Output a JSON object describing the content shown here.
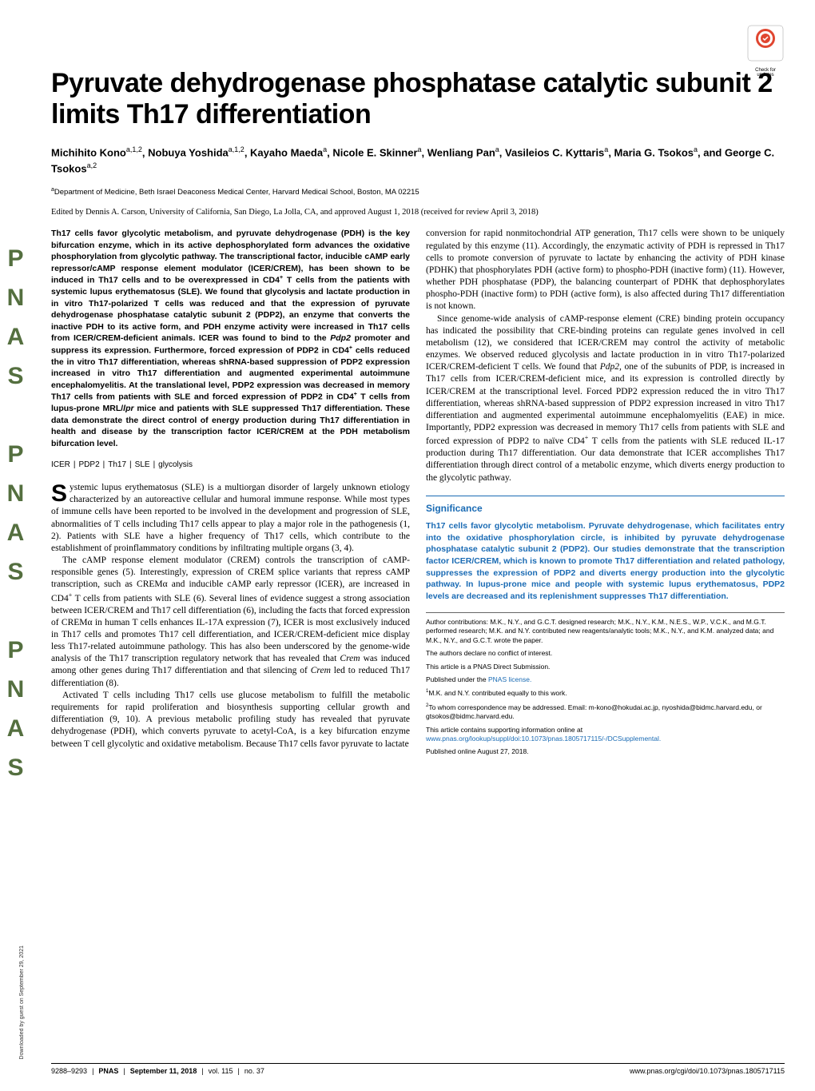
{
  "sidebar": {
    "pnas": "PNAS PNAS PNAS"
  },
  "download_note": "Downloaded by guest on September 29, 2021",
  "check_updates": {
    "label1": "Check for",
    "label2": "updates",
    "badge_color": "#e04630",
    "circle_color": "#ffffff"
  },
  "title": "Pyruvate dehydrogenase phosphatase catalytic subunit 2 limits Th17 differentiation",
  "authors_html": "Michihito Kono<sup>a,1,2</sup>, Nobuya Yoshida<sup>a,1,2</sup>, Kayaho Maeda<sup>a</sup>, Nicole E. Skinner<sup>a</sup>, Wenliang Pan<sup>a</sup>, Vasileios C. Kyttaris<sup>a</sup>, Maria G. Tsokos<sup>a</sup>, and George C. Tsokos<sup>a,2</sup>",
  "affiliation_html": "<sup>a</sup>Department of Medicine, Beth Israel Deaconess Medical Center, Harvard Medical School, Boston, MA 02215",
  "edited": "Edited by Dennis A. Carson, University of California, San Diego, La Jolla, CA, and approved August 1, 2018 (received for review April 3, 2018)",
  "abstract": "Th17 cells favor glycolytic metabolism, and pyruvate dehydrogenase (PDH) is the key bifurcation enzyme, which in its active dephosphorylated form advances the oxidative phosphorylation from glycolytic pathway. The transcriptional factor, inducible cAMP early repressor/cAMP response element modulator (ICER/CREM), has been shown to be induced in Th17 cells and to be overexpressed in CD4<sup>+</sup> T cells from the patients with systemic lupus erythematosus (SLE). We found that glycolysis and lactate production in in vitro Th17-polarized T cells was reduced and that the expression of pyruvate dehydrogenase phosphatase catalytic subunit 2 (PDP2), an enzyme that converts the inactive PDH to its active form, and PDH enzyme activity were increased in Th17 cells from ICER/CREM-deficient animals. ICER was found to bind to the <span class=\"it\">Pdp2</span> promoter and suppress its expression. Furthermore, forced expression of PDP2 in CD4<sup>+</sup> cells reduced the in vitro Th17 differentiation, whereas shRNA-based suppression of PDP2 expression increased in vitro Th17 differentiation and augmented experimental autoimmune encephalomyelitis. At the translational level, PDP2 expression was decreased in memory Th17 cells from patients with SLE and forced expression of PDP2 in CD4<sup>+</sup> T cells from lupus-prone MRL/<span class=\"it\">lpr</span> mice and patients with SLE suppressed Th17 differentiation. These data demonstrate the direct control of energy production during Th17 differentiation in health and disease by the transcription factor ICER/CREM at the PDH metabolism bifurcation level.",
  "keywords": [
    "ICER",
    "PDP2",
    "Th17",
    "SLE",
    "glycolysis"
  ],
  "col1": {
    "p1_dropcap": "S",
    "p1": "ystemic lupus erythematosus (SLE) is a multiorgan disorder of largely unknown etiology characterized by an autoreactive cellular and humoral immune response. While most types of immune cells have been reported to be involved in the development and progression of SLE, abnormalities of T cells including Th17 cells appear to play a major role in the pathogenesis (1, 2). Patients with SLE have a higher frequency of Th17 cells, which contribute to the establishment of proinflammatory conditions by infiltrating multiple organs (3, 4).",
    "p2": "The cAMP response element modulator (CREM) controls the transcription of cAMP-responsible genes (5). Interestingly, expression of CREM splice variants that repress cAMP transcription, such as CREMα and inducible cAMP early repressor (ICER), are increased in CD4<sup>+</sup> T cells from patients with SLE (6). Several lines of evidence suggest a strong association between ICER/CREM and Th17 cell differentiation (6), including the facts that forced expression of CREMα in human T cells enhances IL-17A expression (7), ICER is most exclusively induced in Th17 cells and promotes Th17 cell differentiation, and ICER/CREM-deficient mice display less Th17-related autoimmune pathology. This has also been underscored by the genome-wide analysis of the Th17 transcription regulatory network that has revealed that <span class=\"it\">Crem</span> was induced among other genes during Th17 differentiation and that silencing of <span class=\"it\">Crem</span> led to reduced Th17 differentiation (8).",
    "p3": "Activated T cells including Th17 cells use glucose metabolism to fulfill the metabolic requirements for rapid proliferation and biosynthesis supporting cellular growth and differentiation (9, 10). A previous metabolic profiling study has revealed that pyruvate dehydrogenase (PDH), which converts pyruvate to acetyl-CoA, is a key bifurcation enzyme between T cell glycolytic and oxidative metabolism. Because Th17 cells favor pyruvate to lactate"
  },
  "col2": {
    "p1": "conversion for rapid nonmitochondrial ATP generation, Th17 cells were shown to be uniquely regulated by this enzyme (11). Accordingly, the enzymatic activity of PDH is repressed in Th17 cells to promote conversion of pyruvate to lactate by enhancing the activity of PDH kinase (PDHK) that phosphorylates PDH (active form) to phospho-PDH (inactive form) (11). However, whether PDH phosphatase (PDP), the balancing counterpart of PDHK that dephosphorylates phospho-PDH (inactive form) to PDH (active form), is also affected during Th17 differentiation is not known.",
    "p2": "Since genome-wide analysis of cAMP-response element (CRE) binding protein occupancy has indicated the possibility that CRE-binding proteins can regulate genes involved in cell metabolism (12), we considered that ICER/CREM may control the activity of metabolic enzymes. We observed reduced glycolysis and lactate production in in vitro Th17-polarized ICER/CREM-deficient T cells. We found that <span class=\"it\">Pdp2</span>, one of the subunits of PDP, is increased in Th17 cells from ICER/CREM-deficient mice, and its expression is controlled directly by ICER/CREM at the transcriptional level. Forced PDP2 expression reduced the in vitro Th17 differentiation, whereas shRNA-based suppression of PDP2 expression increased in vitro Th17 differentiation and augmented experimental autoimmune encephalomyelitis (EAE) in mice. Importantly, PDP2 expression was decreased in memory Th17 cells from patients with SLE and forced expression of PDP2 to naïve CD4<sup>+</sup> T cells from the patients with SLE reduced IL-17 production during Th17 differentiation. Our data demonstrate that ICER accomplishes Th17 differentiation through direct control of a metabolic enzyme, which diverts energy production to the glycolytic pathway."
  },
  "significance": {
    "title": "Significance",
    "text": "Th17 cells favor glycolytic metabolism. Pyruvate dehydrogenase, which facilitates entry into the oxidative phosphorylation circle, is inhibited by pyruvate dehydrogenase phosphatase catalytic subunit 2 (PDP2). Our studies demonstrate that the transcription factor ICER/CREM, which is known to promote Th17 differentiation and related pathology, suppresses the expression of PDP2 and diverts energy production into the glycolytic pathway. In lupus-prone mice and people with systemic lupus erythematosus, PDP2 levels are decreased and its replenishment suppresses Th17 differentiation.",
    "color": "#1a6bb4"
  },
  "fine_print": {
    "contributions": "Author contributions: M.K., N.Y., and G.C.T. designed research; M.K., N.Y., K.M., N.E.S., W.P., V.C.K., and M.G.T. performed research; M.K. and N.Y. contributed new reagents/analytic tools; M.K., N.Y., and K.M. analyzed data; and M.K., N.Y., and G.C.T. wrote the paper.",
    "conflict": "The authors declare no conflict of interest.",
    "direct": "This article is a PNAS Direct Submission.",
    "license_pre": "Published under the ",
    "license_link": "PNAS license.",
    "note1": "<sup>1</sup>M.K. and N.Y. contributed equally to this work.",
    "note2": "<sup>2</sup>To whom correspondence may be addressed. Email: m-kono@hokudai.ac.jp, nyoshida@bidmc.harvard.edu, or gtsokos@bidmc.harvard.edu.",
    "supp_pre": "This article contains supporting information online at ",
    "supp_link": "www.pnas.org/lookup/suppl/doi:10.1073/pnas.1805717115/-/DCSupplemental.",
    "published": "Published online August 27, 2018."
  },
  "footer": {
    "pages": "9288–9293",
    "journal": "PNAS",
    "date": "September 11, 2018",
    "vol": "vol. 115",
    "no": "no. 37",
    "doi": "www.pnas.org/cgi/doi/10.1073/pnas.1805717115"
  }
}
